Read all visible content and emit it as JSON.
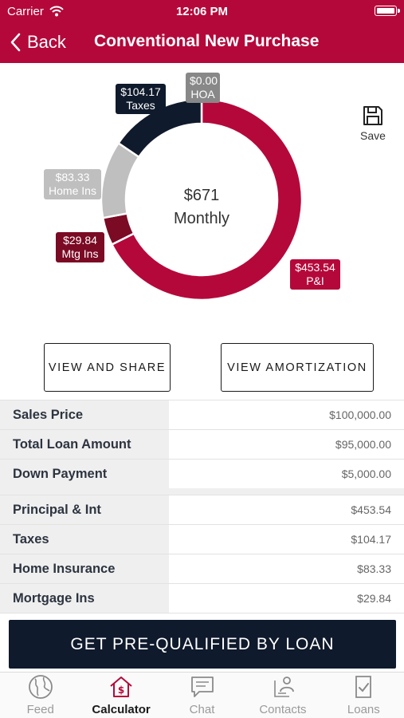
{
  "status_bar": {
    "carrier": "Carrier",
    "time": "12:06 PM"
  },
  "nav": {
    "back_label": "Back",
    "title": "Conventional New Purchase"
  },
  "summary": {
    "total": "$671",
    "period": "Monthly"
  },
  "chart_data": {
    "type": "pie",
    "style": "donut",
    "slices": [
      {
        "label": "P&I",
        "display": "$453.54",
        "value": 453.54,
        "color": "#b5083a"
      },
      {
        "label": "Mtg Ins",
        "display": "$29.84",
        "value": 29.84,
        "color": "#7b0a24"
      },
      {
        "label": "Home Ins",
        "display": "$83.33",
        "value": 83.33,
        "color": "#bfbfbf"
      },
      {
        "label": "Taxes",
        "display": "$104.17",
        "value": 104.17,
        "color": "#0f1a2c"
      },
      {
        "label": "HOA",
        "display": "$0.00",
        "value": 0,
        "color": "#888888"
      }
    ]
  },
  "save_label": "Save",
  "buttons": {
    "view_share": "VIEW AND SHARE",
    "view_amortization": "VIEW AMORTIZATION"
  },
  "loan_details": [
    {
      "label": "Sales Price",
      "value": "$100,000.00"
    },
    {
      "label": "Total Loan Amount",
      "value": "$95,000.00"
    },
    {
      "label": "Down Payment",
      "value": "$5,000.00"
    }
  ],
  "payment_details": [
    {
      "label": "Principal & Int",
      "value": "$453.54"
    },
    {
      "label": "Taxes",
      "value": "$104.17"
    },
    {
      "label": "Home Insurance",
      "value": "$83.33"
    },
    {
      "label": "Mortgage Ins",
      "value": "$29.84"
    }
  ],
  "cta_label": "GET PRE-QUALIFIED BY LOAN",
  "tabs": [
    {
      "label": "Feed",
      "icon": "globe-icon"
    },
    {
      "label": "Calculator",
      "icon": "house-dollar-icon",
      "active": true
    },
    {
      "label": "Chat",
      "icon": "chat-icon"
    },
    {
      "label": "Contacts",
      "icon": "contacts-icon"
    },
    {
      "label": "Loans",
      "icon": "loan-document-icon"
    }
  ],
  "colors": {
    "brand": "#b5083a",
    "navy": "#0f1a2c"
  }
}
